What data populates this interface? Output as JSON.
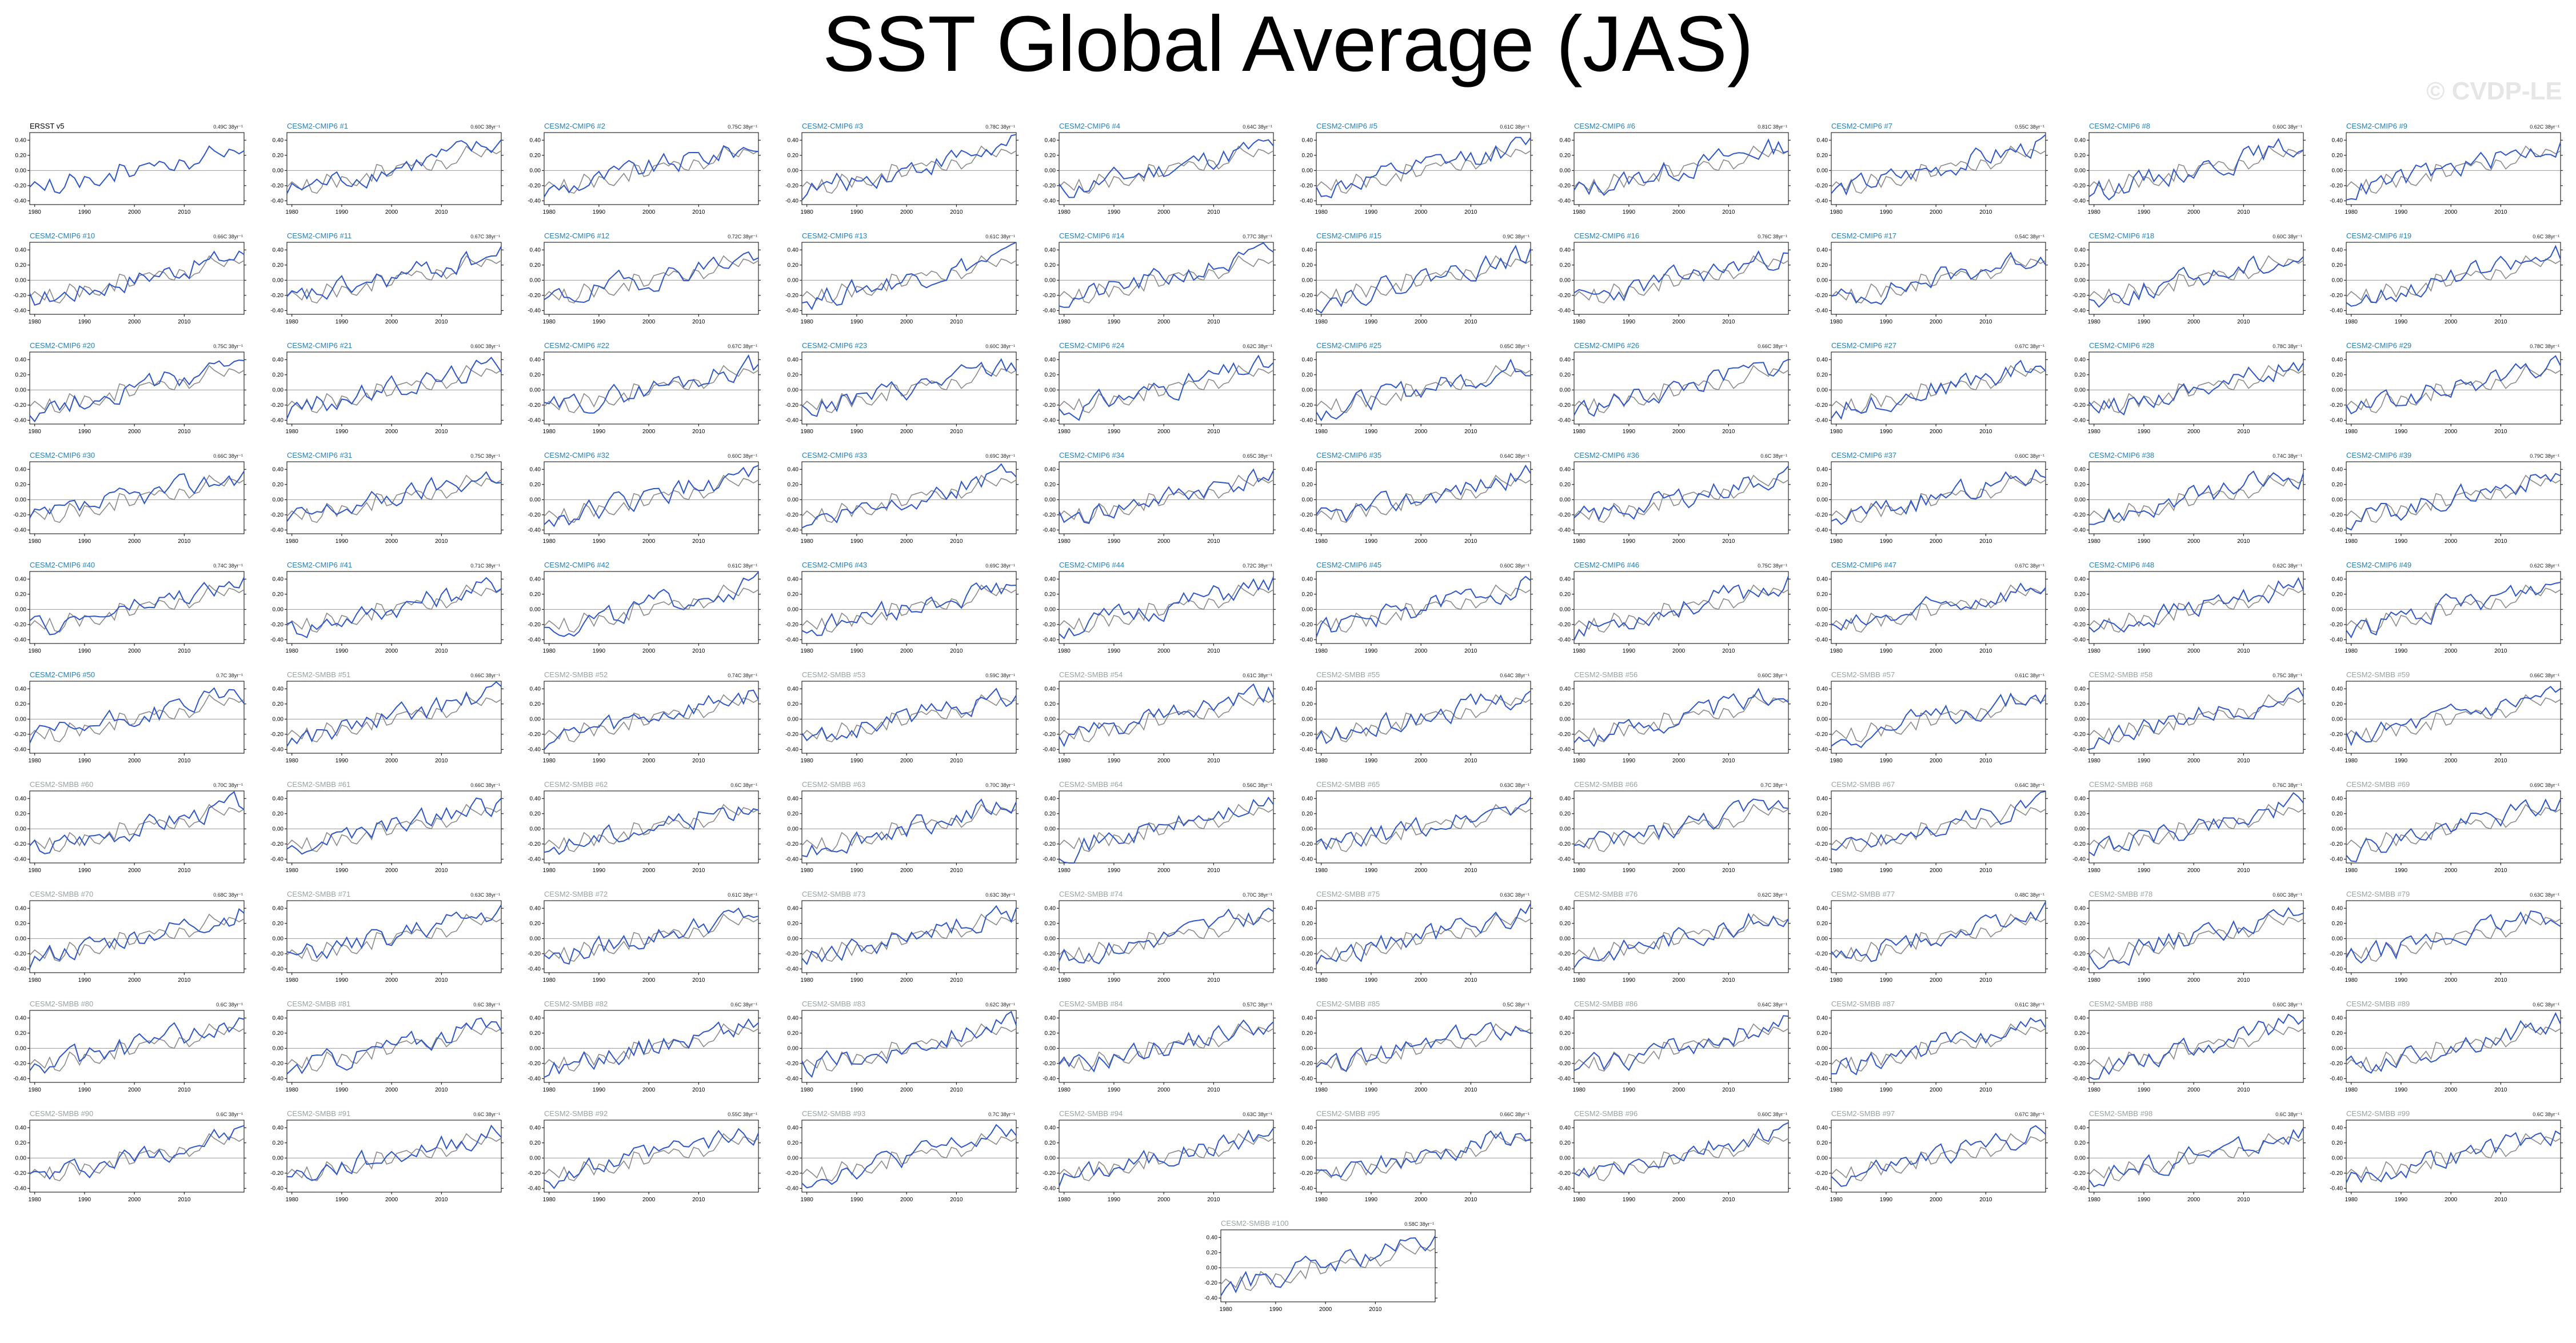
{
  "title": "SST Global Average (JAS)",
  "watermark": "© CVDP-LE",
  "colors": {
    "model": "#2f56c9",
    "obs": "#8a8a8a",
    "cmip6_label": "#2a7fb5",
    "smbb_label": "#9aa2a4",
    "obs_label": "#000000"
  },
  "chart_data": {
    "type": "line",
    "description_units": "SST anomaly (°C)",
    "xlim": [
      1979,
      2022
    ],
    "x_ticks": [
      "1980",
      "1990",
      "2000",
      "2010"
    ],
    "y_ticks": [
      "0.40",
      "0.20",
      "0.00",
      "-0.20",
      "-0.40"
    ],
    "ylim": [
      -0.45,
      0.5
    ],
    "years": [
      1979,
      1980,
      1981,
      1982,
      1983,
      1984,
      1985,
      1986,
      1987,
      1988,
      1989,
      1990,
      1991,
      1992,
      1993,
      1994,
      1995,
      1996,
      1997,
      1998,
      1999,
      2000,
      2001,
      2002,
      2003,
      2004,
      2005,
      2006,
      2007,
      2008,
      2009,
      2010,
      2011,
      2012,
      2013,
      2014,
      2015,
      2016,
      2017,
      2018,
      2019,
      2020,
      2021,
      2022
    ],
    "observed": [
      -0.22,
      -0.15,
      -0.2,
      -0.26,
      -0.12,
      -0.28,
      -0.3,
      -0.22,
      -0.05,
      -0.1,
      -0.22,
      -0.08,
      -0.1,
      -0.18,
      -0.2,
      -0.12,
      -0.04,
      -0.14,
      0.08,
      0.06,
      -0.08,
      -0.06,
      0.06,
      0.08,
      0.1,
      0.06,
      0.12,
      0.1,
      0.02,
      0.0,
      0.14,
      0.12,
      0.02,
      0.08,
      0.1,
      0.2,
      0.32,
      0.26,
      0.22,
      0.18,
      0.28,
      0.26,
      0.22,
      0.26
    ],
    "panels": [
      {
        "label": "ERSST v5",
        "trend": "0.49C 38yr⁻¹",
        "kind": "obs"
      },
      {
        "label": "CESM2-CMIP6 #1",
        "trend": "0.60C 38yr⁻¹",
        "kind": "cmip6"
      },
      {
        "label": "CESM2-CMIP6 #2",
        "trend": "0.75C 38yr⁻¹",
        "kind": "cmip6"
      },
      {
        "label": "CESM2-CMIP6 #3",
        "trend": "0.78C 38yr⁻¹",
        "kind": "cmip6"
      },
      {
        "label": "CESM2-CMIP6 #4",
        "trend": "0.64C 38yr⁻¹",
        "kind": "cmip6"
      },
      {
        "label": "CESM2-CMIP6 #5",
        "trend": "0.61C 38yr⁻¹",
        "kind": "cmip6"
      },
      {
        "label": "CESM2-CMIP6 #6",
        "trend": "0.81C 38yr⁻¹",
        "kind": "cmip6"
      },
      {
        "label": "CESM2-CMIP6 #7",
        "trend": "0.55C 38yr⁻¹",
        "kind": "cmip6"
      },
      {
        "label": "CESM2-CMIP6 #8",
        "trend": "0.60C 38yr⁻¹",
        "kind": "cmip6"
      },
      {
        "label": "CESM2-CMIP6 #9",
        "trend": "0.62C 38yr⁻¹",
        "kind": "cmip6"
      },
      {
        "label": "CESM2-CMIP6 #10",
        "trend": "0.66C 38yr⁻¹",
        "kind": "cmip6"
      },
      {
        "label": "CESM2-CMIP6 #11",
        "trend": "0.67C 38yr⁻¹",
        "kind": "cmip6"
      },
      {
        "label": "CESM2-CMIP6 #12",
        "trend": "0.72C 38yr⁻¹",
        "kind": "cmip6"
      },
      {
        "label": "CESM2-CMIP6 #13",
        "trend": "0.61C 38yr⁻¹",
        "kind": "cmip6"
      },
      {
        "label": "CESM2-CMIP6 #14",
        "trend": "0.77C 38yr⁻¹",
        "kind": "cmip6"
      },
      {
        "label": "CESM2-CMIP6 #15",
        "trend": "0.9C 38yr⁻¹",
        "kind": "cmip6"
      },
      {
        "label": "CESM2-CMIP6 #16",
        "trend": "0.76C 38yr⁻¹",
        "kind": "cmip6"
      },
      {
        "label": "CESM2-CMIP6 #17",
        "trend": "0.54C 38yr⁻¹",
        "kind": "cmip6"
      },
      {
        "label": "CESM2-CMIP6 #18",
        "trend": "0.60C 38yr⁻¹",
        "kind": "cmip6"
      },
      {
        "label": "CESM2-CMIP6 #19",
        "trend": "0.6C 38yr⁻¹",
        "kind": "cmip6"
      },
      {
        "label": "CESM2-CMIP6 #20",
        "trend": "0.75C 38yr⁻¹",
        "kind": "cmip6"
      },
      {
        "label": "CESM2-CMIP6 #21",
        "trend": "0.60C 38yr⁻¹",
        "kind": "cmip6"
      },
      {
        "label": "CESM2-CMIP6 #22",
        "trend": "0.67C 38yr⁻¹",
        "kind": "cmip6"
      },
      {
        "label": "CESM2-CMIP6 #23",
        "trend": "0.60C 38yr⁻¹",
        "kind": "cmip6"
      },
      {
        "label": "CESM2-CMIP6 #24",
        "trend": "0.62C 38yr⁻¹",
        "kind": "cmip6"
      },
      {
        "label": "CESM2-CMIP6 #25",
        "trend": "0.65C 38yr⁻¹",
        "kind": "cmip6"
      },
      {
        "label": "CESM2-CMIP6 #26",
        "trend": "0.66C 38yr⁻¹",
        "kind": "cmip6"
      },
      {
        "label": "CESM2-CMIP6 #27",
        "trend": "0.67C 38yr⁻¹",
        "kind": "cmip6"
      },
      {
        "label": "CESM2-CMIP6 #28",
        "trend": "0.78C 38yr⁻¹",
        "kind": "cmip6"
      },
      {
        "label": "CESM2-CMIP6 #29",
        "trend": "0.78C 38yr⁻¹",
        "kind": "cmip6"
      },
      {
        "label": "CESM2-CMIP6 #30",
        "trend": "0.66C 38yr⁻¹",
        "kind": "cmip6"
      },
      {
        "label": "CESM2-CMIP6 #31",
        "trend": "0.75C 38yr⁻¹",
        "kind": "cmip6"
      },
      {
        "label": "CESM2-CMIP6 #32",
        "trend": "0.60C 38yr⁻¹",
        "kind": "cmip6"
      },
      {
        "label": "CESM2-CMIP6 #33",
        "trend": "0.69C 38yr⁻¹",
        "kind": "cmip6"
      },
      {
        "label": "CESM2-CMIP6 #34",
        "trend": "0.65C 38yr⁻¹",
        "kind": "cmip6"
      },
      {
        "label": "CESM2-CMIP6 #35",
        "trend": "0.64C 38yr⁻¹",
        "kind": "cmip6"
      },
      {
        "label": "CESM2-CMIP6 #36",
        "trend": "0.6C 38yr⁻¹",
        "kind": "cmip6"
      },
      {
        "label": "CESM2-CMIP6 #37",
        "trend": "0.60C 38yr⁻¹",
        "kind": "cmip6"
      },
      {
        "label": "CESM2-CMIP6 #38",
        "trend": "0.74C 38yr⁻¹",
        "kind": "cmip6"
      },
      {
        "label": "CESM2-CMIP6 #39",
        "trend": "0.79C 38yr⁻¹",
        "kind": "cmip6"
      },
      {
        "label": "CESM2-CMIP6 #40",
        "trend": "0.74C 38yr⁻¹",
        "kind": "cmip6"
      },
      {
        "label": "CESM2-CMIP6 #41",
        "trend": "0.71C 38yr⁻¹",
        "kind": "cmip6"
      },
      {
        "label": "CESM2-CMIP6 #42",
        "trend": "0.61C 38yr⁻¹",
        "kind": "cmip6"
      },
      {
        "label": "CESM2-CMIP6 #43",
        "trend": "0.69C 38yr⁻¹",
        "kind": "cmip6"
      },
      {
        "label": "CESM2-CMIP6 #44",
        "trend": "0.72C 38yr⁻¹",
        "kind": "cmip6"
      },
      {
        "label": "CESM2-CMIP6 #45",
        "trend": "0.60C 38yr⁻¹",
        "kind": "cmip6"
      },
      {
        "label": "CESM2-CMIP6 #46",
        "trend": "0.75C 38yr⁻¹",
        "kind": "cmip6"
      },
      {
        "label": "CESM2-CMIP6 #47",
        "trend": "0.67C 38yr⁻¹",
        "kind": "cmip6"
      },
      {
        "label": "CESM2-CMIP6 #48",
        "trend": "0.62C 38yr⁻¹",
        "kind": "cmip6"
      },
      {
        "label": "CESM2-CMIP6 #49",
        "trend": "0.62C 38yr⁻¹",
        "kind": "cmip6"
      },
      {
        "label": "CESM2-CMIP6 #50",
        "trend": "0.7C 38yr⁻¹",
        "kind": "cmip6"
      },
      {
        "label": "CESM2-SMBB #51",
        "trend": "0.66C 38yr⁻¹",
        "kind": "smbb"
      },
      {
        "label": "CESM2-SMBB #52",
        "trend": "0.74C 38yr⁻¹",
        "kind": "smbb"
      },
      {
        "label": "CESM2-SMBB #53",
        "trend": "0.59C 38yr⁻¹",
        "kind": "smbb"
      },
      {
        "label": "CESM2-SMBB #54",
        "trend": "0.61C 38yr⁻¹",
        "kind": "smbb"
      },
      {
        "label": "CESM2-SMBB #55",
        "trend": "0.64C 38yr⁻¹",
        "kind": "smbb"
      },
      {
        "label": "CESM2-SMBB #56",
        "trend": "0.60C 38yr⁻¹",
        "kind": "smbb"
      },
      {
        "label": "CESM2-SMBB #57",
        "trend": "0.61C 38yr⁻¹",
        "kind": "smbb"
      },
      {
        "label": "CESM2-SMBB #58",
        "trend": "0.75C 38yr⁻¹",
        "kind": "smbb"
      },
      {
        "label": "CESM2-SMBB #59",
        "trend": "0.66C 38yr⁻¹",
        "kind": "smbb"
      },
      {
        "label": "CESM2-SMBB #60",
        "trend": "0.70C 38yr⁻¹",
        "kind": "smbb"
      },
      {
        "label": "CESM2-SMBB #61",
        "trend": "0.66C 38yr⁻¹",
        "kind": "smbb"
      },
      {
        "label": "CESM2-SMBB #62",
        "trend": "0.6C 38yr⁻¹",
        "kind": "smbb"
      },
      {
        "label": "CESM2-SMBB #63",
        "trend": "0.70C 38yr⁻¹",
        "kind": "smbb"
      },
      {
        "label": "CESM2-SMBB #64",
        "trend": "0.56C 38yr⁻¹",
        "kind": "smbb"
      },
      {
        "label": "CESM2-SMBB #65",
        "trend": "0.63C 38yr⁻¹",
        "kind": "smbb"
      },
      {
        "label": "CESM2-SMBB #66",
        "trend": "0.7C 38yr⁻¹",
        "kind": "smbb"
      },
      {
        "label": "CESM2-SMBB #67",
        "trend": "0.64C 38yr⁻¹",
        "kind": "smbb"
      },
      {
        "label": "CESM2-SMBB #68",
        "trend": "0.76C 38yr⁻¹",
        "kind": "smbb"
      },
      {
        "label": "CESM2-SMBB #69",
        "trend": "0.69C 38yr⁻¹",
        "kind": "smbb"
      },
      {
        "label": "CESM2-SMBB #70",
        "trend": "0.68C 38yr⁻¹",
        "kind": "smbb"
      },
      {
        "label": "CESM2-SMBB #71",
        "trend": "0.63C 38yr⁻¹",
        "kind": "smbb"
      },
      {
        "label": "CESM2-SMBB #72",
        "trend": "0.61C 38yr⁻¹",
        "kind": "smbb"
      },
      {
        "label": "CESM2-SMBB #73",
        "trend": "0.63C 38yr⁻¹",
        "kind": "smbb"
      },
      {
        "label": "CESM2-SMBB #74",
        "trend": "0.70C 38yr⁻¹",
        "kind": "smbb"
      },
      {
        "label": "CESM2-SMBB #75",
        "trend": "0.63C 38yr⁻¹",
        "kind": "smbb"
      },
      {
        "label": "CESM2-SMBB #76",
        "trend": "0.62C 38yr⁻¹",
        "kind": "smbb"
      },
      {
        "label": "CESM2-SMBB #77",
        "trend": "0.48C 38yr⁻¹",
        "kind": "smbb"
      },
      {
        "label": "CESM2-SMBB #78",
        "trend": "0.60C 38yr⁻¹",
        "kind": "smbb"
      },
      {
        "label": "CESM2-SMBB #79",
        "trend": "0.63C 38yr⁻¹",
        "kind": "smbb"
      },
      {
        "label": "CESM2-SMBB #80",
        "trend": "0.6C 38yr⁻¹",
        "kind": "smbb"
      },
      {
        "label": "CESM2-SMBB #81",
        "trend": "0.6C 38yr⁻¹",
        "kind": "smbb"
      },
      {
        "label": "CESM2-SMBB #82",
        "trend": "0.6C 38yr⁻¹",
        "kind": "smbb"
      },
      {
        "label": "CESM2-SMBB #83",
        "trend": "0.62C 38yr⁻¹",
        "kind": "smbb"
      },
      {
        "label": "CESM2-SMBB #84",
        "trend": "0.57C 38yr⁻¹",
        "kind": "smbb"
      },
      {
        "label": "CESM2-SMBB #85",
        "trend": "0.5C 38yr⁻¹",
        "kind": "smbb"
      },
      {
        "label": "CESM2-SMBB #86",
        "trend": "0.64C 38yr⁻¹",
        "kind": "smbb"
      },
      {
        "label": "CESM2-SMBB #87",
        "trend": "0.61C 38yr⁻¹",
        "kind": "smbb"
      },
      {
        "label": "CESM2-SMBB #88",
        "trend": "0.60C 38yr⁻¹",
        "kind": "smbb"
      },
      {
        "label": "CESM2-SMBB #89",
        "trend": "0.6C 38yr⁻¹",
        "kind": "smbb"
      },
      {
        "label": "CESM2-SMBB #90",
        "trend": "0.6C 38yr⁻¹",
        "kind": "smbb"
      },
      {
        "label": "CESM2-SMBB #91",
        "trend": "0.6C 38yr⁻¹",
        "kind": "smbb"
      },
      {
        "label": "CESM2-SMBB #92",
        "trend": "0.55C 38yr⁻¹",
        "kind": "smbb"
      },
      {
        "label": "CESM2-SMBB #93",
        "trend": "0.7C 38yr⁻¹",
        "kind": "smbb"
      },
      {
        "label": "CESM2-SMBB #94",
        "trend": "0.63C 38yr⁻¹",
        "kind": "smbb"
      },
      {
        "label": "CESM2-SMBB #95",
        "trend": "0.66C 38yr⁻¹",
        "kind": "smbb"
      },
      {
        "label": "CESM2-SMBB #96",
        "trend": "0.60C 38yr⁻¹",
        "kind": "smbb"
      },
      {
        "label": "CESM2-SMBB #97",
        "trend": "0.67C 38yr⁻¹",
        "kind": "smbb"
      },
      {
        "label": "CESM2-SMBB #98",
        "trend": "0.6C 38yr⁻¹",
        "kind": "smbb"
      },
      {
        "label": "CESM2-SMBB #99",
        "trend": "0.6C 38yr⁻¹",
        "kind": "smbb"
      },
      {
        "label": "CESM2-SMBB #100",
        "trend": "0.58C 38yr⁻¹",
        "kind": "smbb"
      }
    ]
  }
}
